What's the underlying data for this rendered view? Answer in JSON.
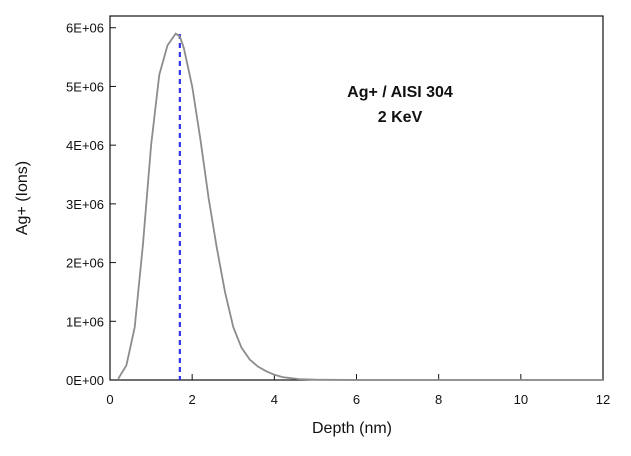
{
  "chart_data": {
    "type": "line",
    "title": "",
    "xlabel": "Depth  (nm)",
    "ylabel": "Ag+ (Ions)",
    "xlim": [
      0,
      12
    ],
    "ylim": [
      0,
      6200000
    ],
    "x_ticks": [
      0,
      2,
      4,
      6,
      8,
      10,
      12
    ],
    "x_tick_labels": [
      "0",
      "2",
      "4",
      "6",
      "8",
      "10",
      "12"
    ],
    "y_ticks": [
      0,
      1000000,
      2000000,
      3000000,
      4000000,
      5000000,
      6000000
    ],
    "y_tick_labels": [
      "0E+00",
      "1E+06",
      "2E+06",
      "3E+06",
      "4E+06",
      "5E+06",
      "6E+06"
    ],
    "grid": false,
    "annotations": [
      "Ag+ / AISI 304",
      "2 KeV"
    ],
    "series": [
      {
        "color": "#8c8c8c",
        "x": [
          0.2,
          0.4,
          0.6,
          0.8,
          1.0,
          1.2,
          1.4,
          1.6,
          1.7,
          1.8,
          2.0,
          2.2,
          2.4,
          2.6,
          2.8,
          3.0,
          3.2,
          3.4,
          3.6,
          3.8,
          4.0,
          4.2,
          4.4,
          4.6,
          5.0,
          6.0,
          8.0,
          10.0,
          12.0
        ],
        "y": [
          20000,
          250000,
          900000,
          2300000,
          4000000,
          5200000,
          5700000,
          5900000,
          5850000,
          5650000,
          5000000,
          4100000,
          3100000,
          2250000,
          1500000,
          900000,
          550000,
          350000,
          230000,
          150000,
          90000,
          50000,
          30000,
          15000,
          5000,
          0,
          0,
          0,
          0
        ]
      }
    ],
    "reference_line": {
      "x": 1.7,
      "style": "dashed",
      "color": "#3333ee"
    }
  }
}
